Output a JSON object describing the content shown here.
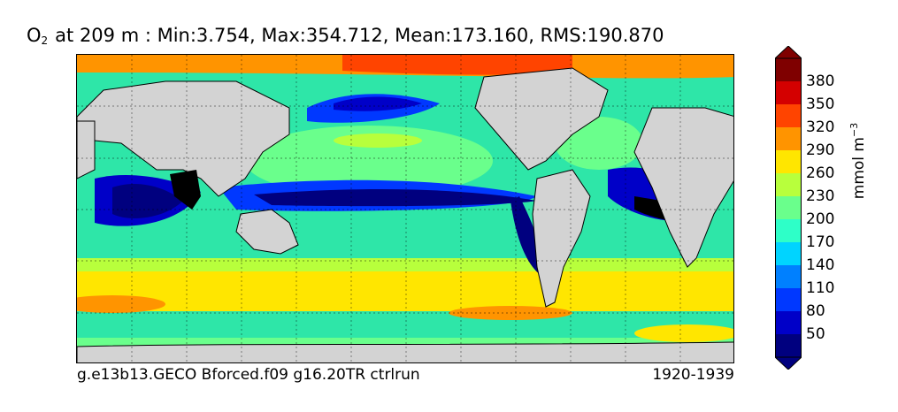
{
  "title": {
    "species": "O",
    "subscript": "2",
    "rest": "at 209 m : Min:3.754, Max:354.712, Mean:173.160, RMS:190.870"
  },
  "footer": {
    "run_name": "g.e13b13.GECO Bforced.f09 g16.20TR ctrlrun",
    "period": "1920-1939"
  },
  "colorbar": {
    "unit_base": "mmol m",
    "unit_exp": "−3",
    "ticks": [
      "50",
      "80",
      "110",
      "140",
      "170",
      "200",
      "230",
      "260",
      "290",
      "320",
      "350",
      "380"
    ],
    "colors": [
      "#00007f",
      "#0000c8",
      "#0038ff",
      "#0080ff",
      "#00d4ff",
      "#2effc8",
      "#6aff8c",
      "#b8ff3c",
      "#ffe600",
      "#ff9400",
      "#ff4400",
      "#d40000",
      "#7f0000"
    ],
    "land_color": "#d3d3d3"
  }
}
